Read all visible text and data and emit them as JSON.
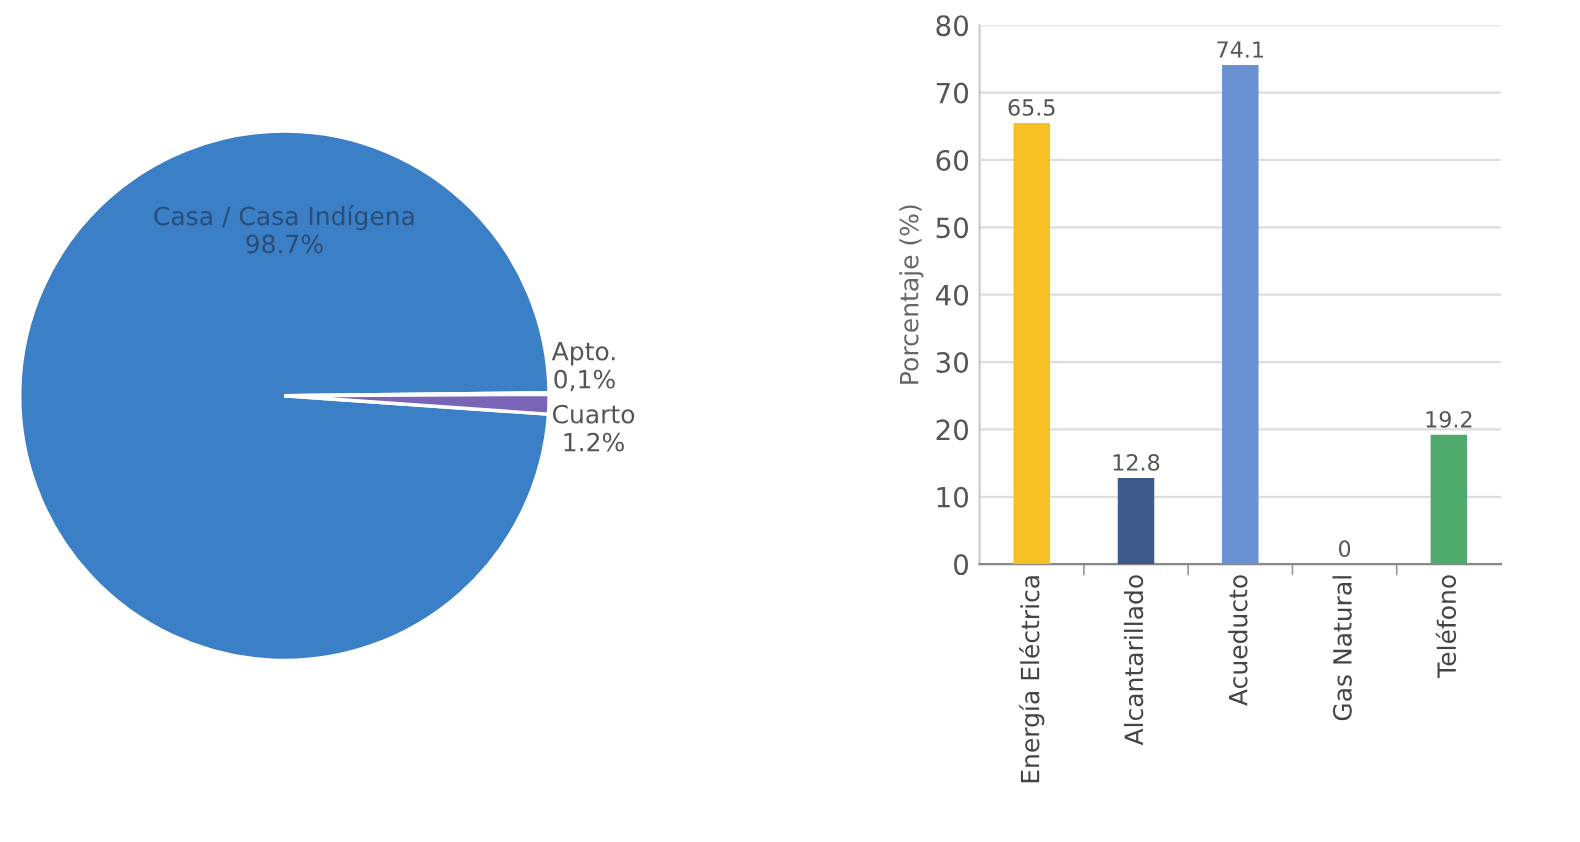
{
  "chart_data": [
    {
      "type": "pie",
      "categories": [
        "Casa / Casa Indígena",
        "Apto.",
        "Cuarto"
      ],
      "values": [
        98.7,
        0.1,
        1.2
      ],
      "value_labels": [
        "98.7%",
        "0,1%",
        "1.2%"
      ],
      "colors": [
        "#3b7fc6",
        "#5cae7a",
        "#7a64b8"
      ]
    },
    {
      "type": "bar",
      "ylabel": "Porcentaje (%)",
      "categories": [
        "Energía Eléctrica",
        "Alcantarillado",
        "Acueducto",
        "Gas Natural",
        "Teléfono"
      ],
      "values": [
        65.5,
        12.8,
        74.1,
        0,
        19.2
      ],
      "colors": [
        "#f5c024",
        "#3d5a8a",
        "#6a92d2",
        "#8a8a8a",
        "#4faa6e"
      ],
      "ylim": [
        0,
        80
      ],
      "yticks": [
        0,
        10,
        20,
        30,
        40,
        50,
        60,
        70,
        80
      ],
      "grid": "y",
      "data_labels": true
    }
  ]
}
